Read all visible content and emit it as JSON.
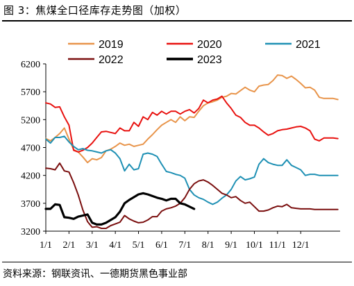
{
  "header": {
    "title": "图 3：焦煤全口径库存走势图（加权）"
  },
  "footer": {
    "source": "资料来源：钢联资讯、一德期货黑色事业部"
  },
  "chart_data": {
    "type": "line",
    "title": "",
    "xlabel": "",
    "ylabel": "",
    "x_domain": [
      0,
      12.7
    ],
    "ylim": [
      3200,
      6200
    ],
    "yticks": [
      3200,
      3700,
      4200,
      4700,
      5200,
      5700,
      6200
    ],
    "ytick_labels": [
      "3200",
      "3700",
      "4200",
      "4700",
      "5200",
      "5700",
      "6200"
    ],
    "xticks": [
      0,
      1,
      2,
      3,
      4,
      5,
      6,
      7,
      8,
      9,
      10,
      11
    ],
    "xtick_labels": [
      "1/1",
      "2/1",
      "3/1",
      "4/1",
      "5/1",
      "6/1",
      "7/1",
      "8/1",
      "9/1",
      "10/1",
      "11/1",
      "12/1"
    ],
    "grid": false,
    "legend_position": "top",
    "series": [
      {
        "name": "2019",
        "color": "#E8944A",
        "width": 2,
        "x": [
          0.0,
          0.2,
          0.4,
          0.6,
          0.8,
          1.0,
          1.2,
          1.4,
          1.6,
          1.8,
          2.0,
          2.2,
          2.4,
          2.6,
          2.8,
          3.0,
          3.2,
          3.4,
          3.6,
          3.8,
          4.0,
          4.2,
          4.4,
          4.6,
          4.8,
          5.0,
          5.2,
          5.4,
          5.6,
          5.8,
          6.0,
          6.2,
          6.4,
          6.6,
          6.8,
          7.0,
          7.2,
          7.4,
          7.6,
          7.8,
          8.0,
          8.2,
          8.4,
          8.6,
          8.8,
          9.0,
          9.2,
          9.4,
          9.6,
          9.8,
          10.0,
          10.2,
          10.4,
          10.6,
          10.8,
          11.0,
          11.2,
          11.4,
          11.6,
          11.8,
          12.0,
          12.2,
          12.4,
          12.6
        ],
        "y": [
          4860,
          4820,
          4880,
          4950,
          5050,
          4850,
          4660,
          4620,
          4530,
          4430,
          4500,
          4480,
          4520,
          4640,
          4670,
          4720,
          4780,
          4740,
          4760,
          4720,
          4740,
          4760,
          4850,
          4930,
          5020,
          5100,
          5150,
          5200,
          5150,
          5250,
          5180,
          5250,
          5240,
          5350,
          5450,
          5500,
          5520,
          5550,
          5600,
          5620,
          5670,
          5660,
          5720,
          5780,
          5730,
          5700,
          5800,
          5820,
          5830,
          5900,
          6000,
          5990,
          5940,
          5980,
          5920,
          5850,
          5770,
          5780,
          5730,
          5600,
          5580,
          5580,
          5580,
          5560
        ]
      },
      {
        "name": "2020",
        "color": "#E8110F",
        "width": 2,
        "x": [
          0.0,
          0.2,
          0.4,
          0.6,
          0.8,
          1.0,
          1.2,
          1.4,
          1.6,
          1.8,
          2.0,
          2.2,
          2.4,
          2.6,
          2.8,
          3.0,
          3.2,
          3.4,
          3.6,
          3.8,
          4.0,
          4.2,
          4.4,
          4.6,
          4.8,
          5.0,
          5.2,
          5.4,
          5.6,
          5.8,
          6.0,
          6.2,
          6.4,
          6.6,
          6.8,
          7.0,
          7.2,
          7.4,
          7.6,
          7.8,
          8.0,
          8.2,
          8.4,
          8.6,
          8.8,
          9.0,
          9.2,
          9.4,
          9.6,
          9.8,
          10.0,
          10.2,
          10.4,
          10.6,
          10.8,
          11.0,
          11.2,
          11.4,
          11.6,
          11.8,
          12.0,
          12.2,
          12.4,
          12.6
        ],
        "y": [
          5500,
          5480,
          5420,
          5430,
          5250,
          5100,
          4650,
          4620,
          4650,
          4700,
          4780,
          4880,
          4980,
          4990,
          4970,
          4950,
          5050,
          5000,
          5000,
          5150,
          5080,
          5250,
          5200,
          5330,
          5280,
          5350,
          5300,
          5350,
          5350,
          5300,
          5350,
          5380,
          5320,
          5400,
          5550,
          5500,
          5550,
          5570,
          5620,
          5500,
          5400,
          5280,
          5240,
          5150,
          5100,
          5100,
          5050,
          4980,
          4920,
          4950,
          5000,
          5020,
          5030,
          5050,
          5070,
          5080,
          5050,
          5000,
          4850,
          4820,
          4870,
          4870,
          4870,
          4860
        ]
      },
      {
        "name": "2021",
        "color": "#1E90B4",
        "width": 2,
        "x": [
          0.0,
          0.2,
          0.4,
          0.6,
          0.8,
          1.0,
          1.2,
          1.4,
          1.6,
          1.8,
          2.0,
          2.2,
          2.4,
          2.6,
          2.8,
          3.0,
          3.2,
          3.4,
          3.6,
          3.8,
          4.0,
          4.2,
          4.4,
          4.6,
          4.8,
          5.0,
          5.2,
          5.4,
          5.6,
          5.8,
          6.0,
          6.2,
          6.4,
          6.6,
          6.8,
          7.0,
          7.2,
          7.4,
          7.6,
          7.8,
          8.0,
          8.2,
          8.4,
          8.6,
          8.8,
          9.0,
          9.2,
          9.4,
          9.6,
          9.8,
          10.0,
          10.2,
          10.4,
          10.6,
          10.8,
          11.0,
          11.2,
          11.4,
          11.6,
          11.8,
          12.0,
          12.2,
          12.4,
          12.6
        ],
        "y": [
          4850,
          4780,
          4880,
          4880,
          4900,
          4800,
          4720,
          4660,
          4680,
          4650,
          4640,
          4620,
          4600,
          4640,
          4660,
          4600,
          4500,
          4280,
          4400,
          4300,
          4320,
          4580,
          4600,
          4580,
          4540,
          4400,
          4270,
          4250,
          4220,
          4200,
          4150,
          3950,
          3850,
          3800,
          3770,
          3720,
          3680,
          3720,
          3790,
          3850,
          3950,
          4100,
          4180,
          4120,
          4140,
          4170,
          4400,
          4500,
          4430,
          4400,
          4380,
          4380,
          4480,
          4380,
          4340,
          4300,
          4200,
          4220,
          4220,
          4200,
          4200,
          4200,
          4200,
          4200
        ]
      },
      {
        "name": "2022",
        "color": "#7A0E0E",
        "width": 2,
        "x": [
          0.0,
          0.2,
          0.4,
          0.6,
          0.8,
          1.0,
          1.2,
          1.4,
          1.6,
          1.8,
          2.0,
          2.2,
          2.4,
          2.6,
          2.8,
          3.0,
          3.2,
          3.4,
          3.6,
          3.8,
          4.0,
          4.2,
          4.4,
          4.6,
          4.8,
          5.0,
          5.2,
          5.4,
          5.6,
          5.8,
          6.0,
          6.2,
          6.4,
          6.6,
          6.8,
          7.0,
          7.2,
          7.4,
          7.6,
          7.8,
          8.0,
          8.2,
          8.4,
          8.6,
          8.8,
          9.0,
          9.2,
          9.4,
          9.6,
          9.8,
          10.0,
          10.2,
          10.4,
          10.6,
          10.8,
          11.0,
          11.2,
          11.4,
          11.6,
          11.8,
          12.0,
          12.2,
          12.4,
          12.6
        ],
        "y": [
          4330,
          4320,
          4300,
          4420,
          4280,
          4260,
          4070,
          3850,
          3580,
          3370,
          3270,
          3280,
          3250,
          3250,
          3300,
          3330,
          3360,
          3480,
          3420,
          3380,
          3350,
          3360,
          3400,
          3460,
          3460,
          3560,
          3600,
          3620,
          3650,
          3700,
          3800,
          3950,
          4050,
          4100,
          4120,
          4080,
          4020,
          3950,
          3880,
          3850,
          3800,
          3820,
          3750,
          3700,
          3720,
          3640,
          3560,
          3560,
          3580,
          3620,
          3650,
          3640,
          3680,
          3620,
          3610,
          3600,
          3600,
          3600,
          3590,
          3590,
          3590,
          3590,
          3590,
          3590
        ]
      },
      {
        "name": "2023",
        "color": "#000000",
        "width": 3.2,
        "x": [
          0.0,
          0.2,
          0.4,
          0.6,
          0.8,
          1.0,
          1.2,
          1.4,
          1.6,
          1.8,
          2.0,
          2.2,
          2.4,
          2.6,
          2.8,
          3.0,
          3.2,
          3.4,
          3.6,
          3.8,
          4.0,
          4.2,
          4.4,
          4.6,
          4.8,
          5.0,
          5.2,
          5.4,
          5.6,
          5.8,
          6.0,
          6.2,
          6.4
        ],
        "y": [
          3600,
          3600,
          3680,
          3670,
          3450,
          3440,
          3420,
          3460,
          3480,
          3500,
          3350,
          3320,
          3320,
          3350,
          3400,
          3450,
          3550,
          3700,
          3760,
          3810,
          3860,
          3880,
          3860,
          3830,
          3800,
          3780,
          3750,
          3780,
          3780,
          3700,
          3680,
          3640,
          3600
        ]
      }
    ]
  }
}
